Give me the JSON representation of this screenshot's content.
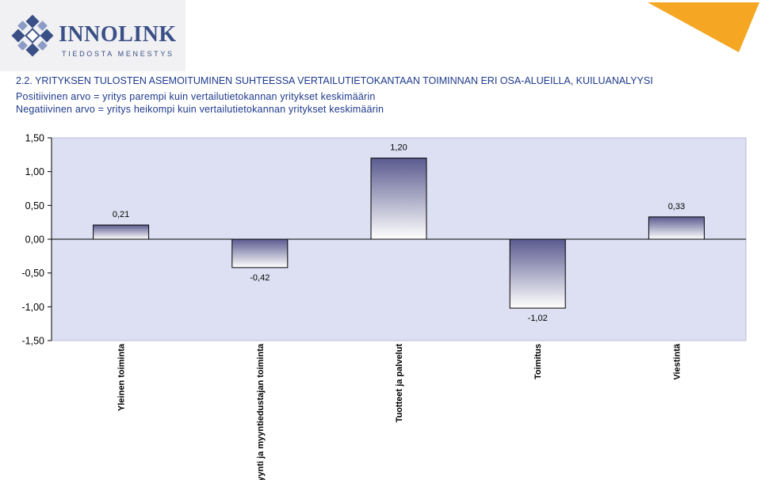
{
  "logo": {
    "name": "INNOLINK",
    "tagline": "TIEDOSTA MENESTYS",
    "icon": "innolink-diamond-logo",
    "color": "#3a4f86"
  },
  "header": {
    "title": "2.2. YRITYKSEN TULOSTEN ASEMOITUMINEN SUHTEESSA VERTAILUTIETOKANTAAN TOIMINNAN ERI OSA-ALUEILLA, KUILUANALYYSI",
    "positive_note": "Positiivinen arvo = yritys parempi kuin vertailutietokannan yritykset keskimäärin",
    "negative_note": "Negatiivinen arvo = yritys heikompi kuin vertailutietokannan yritykset keskimäärin"
  },
  "colors": {
    "plot_background": "#dde0f2",
    "bar_top": "#5a5a90",
    "bar_bottom": "#ffffff",
    "accent_triangle": "#f5a623",
    "text_blue": "#1e3a8c"
  },
  "chart_data": {
    "type": "bar",
    "categories": [
      "Yleinen toiminta",
      "Myynti ja myyntiedustajan toiminta",
      "Tuotteet ja palvelut",
      "Toimitus",
      "Viestintä"
    ],
    "values": [
      0.21,
      -0.42,
      1.2,
      -1.02,
      0.33
    ],
    "value_labels": [
      "0,21",
      "-0,42",
      "1,20",
      "-1,02",
      "0,33"
    ],
    "yticks": [
      1.5,
      1.0,
      0.5,
      0.0,
      -0.5,
      -1.0,
      -1.5
    ],
    "ytick_labels": [
      "1,50",
      "1,00",
      "0,50",
      "0,00",
      "-0,50",
      "-1,00",
      "-1,50"
    ],
    "ylim": [
      -1.5,
      1.5
    ],
    "grid": false,
    "legend": "none"
  }
}
